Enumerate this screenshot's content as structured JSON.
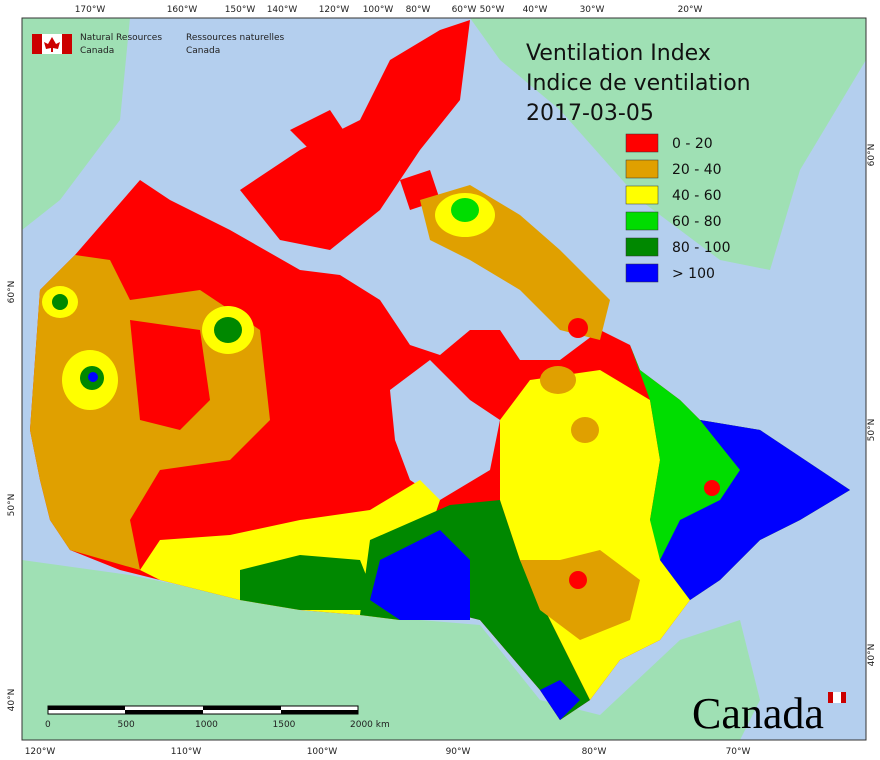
{
  "header": {
    "agency_en": [
      "Natural Resources",
      "Canada"
    ],
    "agency_fr": [
      "Ressources naturelles",
      "Canada"
    ]
  },
  "title": [
    "Ventilation Index",
    "Indice de ventilation",
    "2017-03-05"
  ],
  "legend": [
    {
      "label": "0 - 20",
      "color": "#ff0000"
    },
    {
      "label": "20 - 40",
      "color": "#e0a000"
    },
    {
      "label": "40 - 60",
      "color": "#ffff00"
    },
    {
      "label": "60 - 80",
      "color": "#00dd00"
    },
    {
      "label": "80 - 100",
      "color": "#008800"
    },
    {
      "label": "> 100",
      "color": "#0000ff"
    }
  ],
  "graticule": {
    "top": [
      "170°W",
      "160°W",
      "150°W",
      "140°W",
      "120°W",
      "100°W",
      "80°W",
      "60°W",
      "50°W",
      "40°W",
      "30°W",
      "20°W"
    ],
    "bottom": [
      "120°W",
      "110°W",
      "100°W",
      "90°W",
      "80°W",
      "70°W"
    ],
    "left": [
      "60°N",
      "50°N",
      "40°N"
    ],
    "right": [
      "60°N",
      "50°N",
      "40°N"
    ]
  },
  "scale_bar": {
    "labels": [
      "0",
      "500",
      "1000",
      "1500",
      "2000  km"
    ]
  },
  "wordmark": "Canada"
}
